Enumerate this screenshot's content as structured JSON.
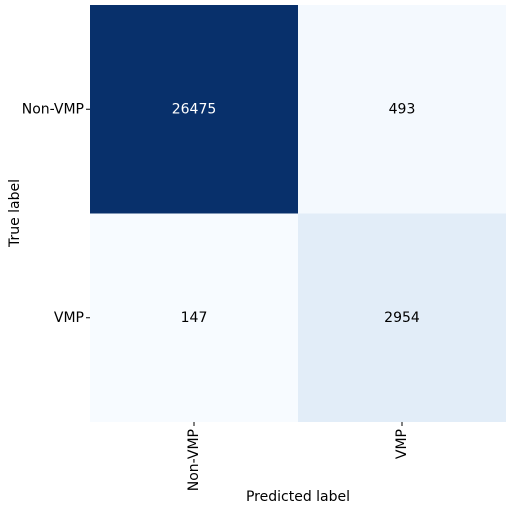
{
  "chart_data": {
    "type": "heatmap",
    "rows": [
      "Non-VMP",
      "VMP"
    ],
    "columns": [
      "Non-VMP",
      "VMP"
    ],
    "values": [
      [
        26475,
        493
      ],
      [
        147,
        2954
      ]
    ],
    "xlabel": "Predicted label",
    "ylabel": "True label",
    "colormap": [
      "#f7fbff",
      "#deebf7",
      "#c6dbef",
      "#9ecae1",
      "#6baed6",
      "#4292c6",
      "#2171b5",
      "#08519c",
      "#08306b"
    ]
  }
}
